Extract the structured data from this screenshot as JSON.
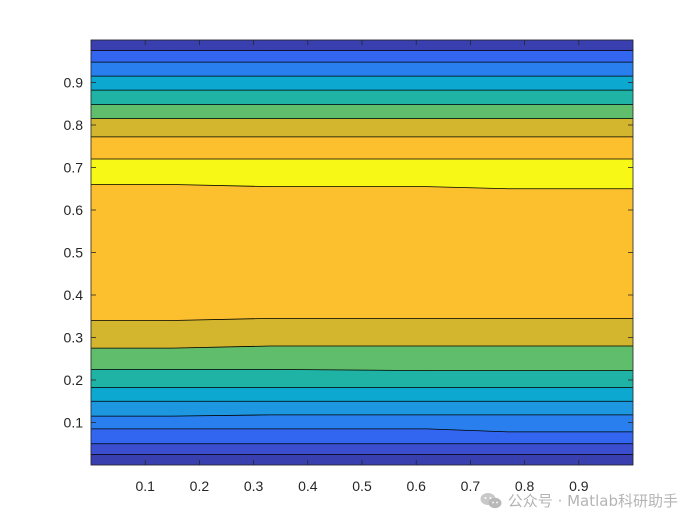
{
  "chart_data": {
    "type": "contourf",
    "title": "",
    "xlabel": "",
    "ylabel": "",
    "xlim": [
      0,
      1
    ],
    "ylim": [
      0,
      1
    ],
    "xticks": [
      0.1,
      0.2,
      0.3,
      0.4,
      0.5,
      0.6,
      0.7,
      0.8,
      0.9
    ],
    "yticks": [
      0.1,
      0.2,
      0.3,
      0.4,
      0.5,
      0.6,
      0.7,
      0.8,
      0.9
    ],
    "xtick_labels": [
      "0.1",
      "0.2",
      "0.3",
      "0.4",
      "0.5",
      "0.6",
      "0.7",
      "0.8",
      "0.9"
    ],
    "ytick_labels": [
      "0.1",
      "0.2",
      "0.3",
      "0.4",
      "0.5",
      "0.6",
      "0.7",
      "0.8",
      "0.9"
    ],
    "grid": false,
    "colormap": "parula",
    "boundary_x": [
      0,
      0.15,
      0.33,
      0.62,
      0.77,
      1
    ],
    "contour_lines": [
      [
        0.025,
        0.025,
        0.025,
        0.025,
        0.025,
        0.025
      ],
      [
        0.05,
        0.05,
        0.05,
        0.05,
        0.05,
        0.05
      ],
      [
        0.085,
        0.085,
        0.085,
        0.085,
        0.078,
        0.078
      ],
      [
        0.115,
        0.115,
        0.118,
        0.118,
        0.118,
        0.118
      ],
      [
        0.15,
        0.15,
        0.15,
        0.15,
        0.15,
        0.15
      ],
      [
        0.182,
        0.182,
        0.182,
        0.182,
        0.182,
        0.182
      ],
      [
        0.225,
        0.225,
        0.225,
        0.222,
        0.222,
        0.222
      ],
      [
        0.275,
        0.275,
        0.28,
        0.28,
        0.28,
        0.28
      ],
      [
        0.34,
        0.34,
        0.345,
        0.345,
        0.345,
        0.345
      ],
      [
        0.66,
        0.66,
        0.655,
        0.655,
        0.65,
        0.65
      ],
      [
        0.72,
        0.72,
        0.72,
        0.72,
        0.72,
        0.72
      ],
      [
        0.772,
        0.772,
        0.772,
        0.772,
        0.772,
        0.772
      ],
      [
        0.815,
        0.815,
        0.815,
        0.815,
        0.815,
        0.815
      ],
      [
        0.848,
        0.848,
        0.848,
        0.848,
        0.848,
        0.848
      ],
      [
        0.882,
        0.882,
        0.882,
        0.882,
        0.882,
        0.882
      ],
      [
        0.915,
        0.915,
        0.915,
        0.915,
        0.915,
        0.915
      ],
      [
        0.948,
        0.948,
        0.948,
        0.948,
        0.948,
        0.948
      ],
      [
        0.975,
        0.975,
        0.975,
        0.975,
        0.975,
        0.975
      ]
    ],
    "band_colors": [
      "#3a3fb0",
      "#3c4ed0",
      "#3366f0",
      "#2a7fee",
      "#1d97e0",
      "#0ca8d0",
      "#1fb3a5",
      "#5fbd6b",
      "#d4b62e",
      "#fcc02e",
      "#f8f816",
      "#fcc02e",
      "#d4b62e",
      "#5fbd6b",
      "#1fb3a5",
      "#0ca8d0",
      "#2a7fee",
      "#3366f0",
      "#3a3fb0"
    ],
    "line_color": "#000000"
  },
  "watermark": {
    "icon": "wechat-icon",
    "text": "公众号 · Matlab科研助手"
  }
}
